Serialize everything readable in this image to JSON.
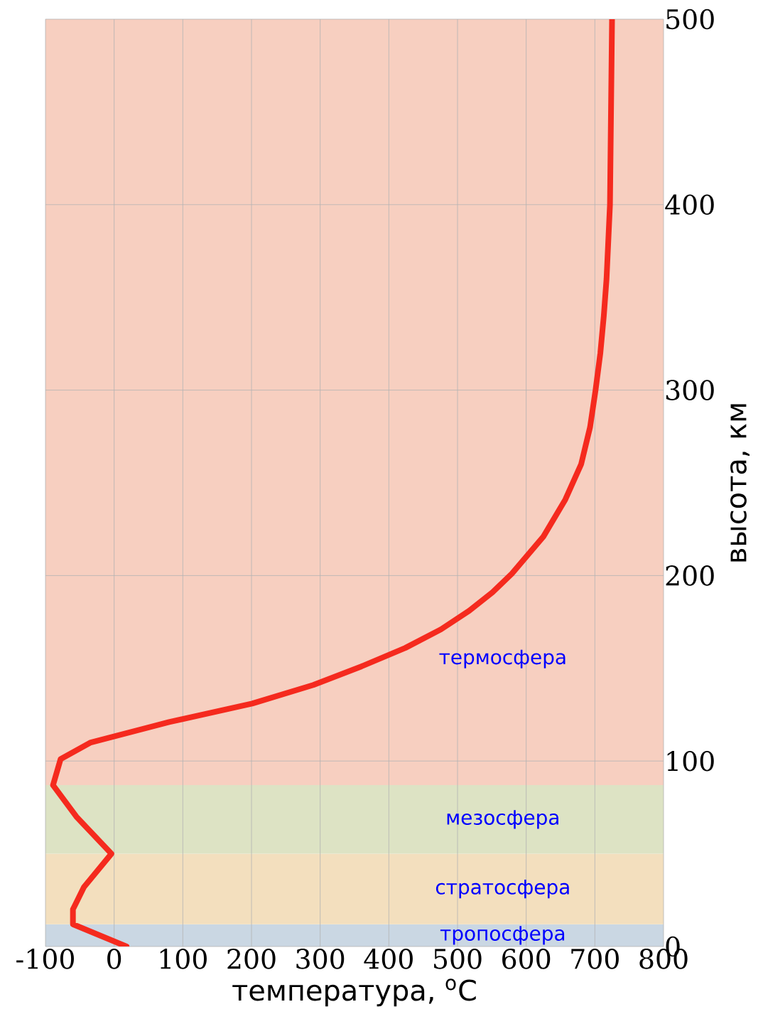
{
  "chart_data": {
    "type": "line",
    "xlabel": "температура, $^{o}$C",
    "ylabel": "высота, км",
    "xlim": [
      -100,
      800
    ],
    "ylim": [
      0,
      500
    ],
    "xticks": [
      -100,
      0,
      100,
      200,
      300,
      400,
      500,
      600,
      700,
      800
    ],
    "yticks": [
      0,
      100,
      200,
      300,
      400,
      500
    ],
    "grid": true,
    "series": [
      {
        "color": "#f52a1e",
        "x": [
          18,
          -60,
          -60,
          -44,
          -4,
          -55,
          -89,
          -78,
          -34,
          80,
          201,
          290,
          360,
          424,
          476,
          517,
          551,
          579,
          625,
          657,
          680,
          693,
          701,
          708,
          713,
          717,
          722,
          725
        ],
        "values": [
          0,
          12,
          20,
          32,
          50,
          70,
          87,
          101,
          110,
          121,
          131,
          141,
          151,
          161,
          171,
          181,
          191,
          201,
          221,
          241,
          260,
          280,
          300,
          320,
          340,
          360,
          400,
          500
        ]
      }
    ],
    "bands": [
      {
        "axis": "y",
        "from": 0,
        "to": 12,
        "label": "тропосфера",
        "color": "#cad7e3"
      },
      {
        "axis": "y",
        "from": 12,
        "to": 50,
        "label": "стратосфера",
        "color": "#f3dfbe"
      },
      {
        "axis": "y",
        "from": 50,
        "to": 87,
        "label": "мезосфера",
        "color": "#dde3c4"
      },
      {
        "axis": "y",
        "from": 87,
        "to": 500,
        "label": "термосфера",
        "color": "#f7cfc0"
      }
    ]
  }
}
